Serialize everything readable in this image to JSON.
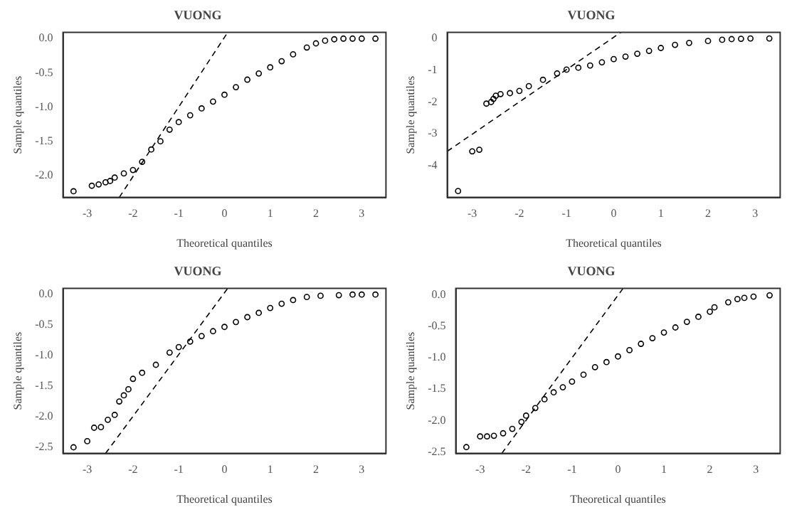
{
  "chart_data": [
    {
      "type": "scatter",
      "title": "VUONG",
      "xlabel": "Theoretical quantiles",
      "ylabel": "Sample quantiles",
      "xlim": [
        -3.53,
        3.53
      ],
      "ylim": [
        -2.32,
        0.09
      ],
      "xticks": [
        -3,
        -2,
        -1,
        0,
        1,
        2,
        3
      ],
      "yticks": [
        {
          "value": 0,
          "label": "0.0"
        },
        {
          "value": -0.5,
          "label": "-0.5"
        },
        {
          "value": -1,
          "label": "-1.0"
        },
        {
          "value": -1.5,
          "label": "-1.5"
        },
        {
          "value": -2,
          "label": "-2.0"
        }
      ],
      "grid": false,
      "legend": false,
      "series": [
        {
          "color": "#000000",
          "marker": "circle",
          "x": [
            -3.3,
            -2.9,
            -2.75,
            -2.6,
            -2.5,
            -2.4,
            -2.2,
            -2.0,
            -1.8,
            -1.6,
            -1.4,
            -1.2,
            -1.0,
            -0.75,
            -0.5,
            -0.25,
            0,
            0.25,
            0.5,
            0.75,
            1.0,
            1.25,
            1.5,
            1.8,
            2.0,
            2.2,
            2.4,
            2.6,
            2.8,
            3.0,
            3.3
          ],
          "values": [
            -2.23,
            -2.15,
            -2.13,
            -2.1,
            -2.08,
            -2.03,
            -1.97,
            -1.92,
            -1.8,
            -1.62,
            -1.5,
            -1.33,
            -1.22,
            -1.12,
            -1.02,
            -0.92,
            -0.82,
            -0.71,
            -0.6,
            -0.51,
            -0.42,
            -0.33,
            -0.23,
            -0.13,
            -0.07,
            -0.03,
            -0.01,
            0,
            0,
            0,
            0
          ]
        },
        {
          "type": "line",
          "line_style": "dashed",
          "color": "#000000",
          "x": [
            -2.3,
            0.07
          ],
          "values": [
            -2.32,
            0.09
          ]
        }
      ]
    },
    {
      "type": "scatter",
      "title": "VUONG",
      "xlabel": "Theoretical quantiles",
      "ylabel": "Sample quantiles",
      "xlim": [
        -3.53,
        3.53
      ],
      "ylim": [
        -5.0,
        0.19
      ],
      "xticks": [
        -3,
        -2,
        -1,
        0,
        1,
        2,
        3
      ],
      "yticks": [
        0,
        -1,
        -2,
        -3,
        -4
      ],
      "grid": false,
      "legend": false,
      "series": [
        {
          "color": "#000000",
          "marker": "circle",
          "x": [
            -3.3,
            -3.0,
            -2.85,
            -2.7,
            -2.6,
            -2.55,
            -2.5,
            -2.4,
            -2.2,
            -2.0,
            -1.8,
            -1.5,
            -1.2,
            -1.0,
            -0.75,
            -0.5,
            -0.25,
            0,
            0.25,
            0.5,
            0.75,
            1.0,
            1.3,
            1.6,
            2.0,
            2.3,
            2.5,
            2.7,
            2.9,
            3.3
          ],
          "values": [
            -4.8,
            -3.55,
            -3.5,
            -2.05,
            -2.0,
            -1.9,
            -1.8,
            -1.75,
            -1.72,
            -1.65,
            -1.5,
            -1.3,
            -1.1,
            -0.98,
            -0.92,
            -0.85,
            -0.75,
            -0.65,
            -0.57,
            -0.48,
            -0.39,
            -0.3,
            -0.2,
            -0.14,
            -0.08,
            -0.04,
            -0.02,
            -0.01,
            0,
            0
          ]
        },
        {
          "type": "line",
          "line_style": "dashed",
          "color": "#000000",
          "x": [
            -3.53,
            0.15
          ],
          "values": [
            -3.55,
            0.19
          ]
        }
      ]
    },
    {
      "type": "scatter",
      "title": "VUONG",
      "xlabel": "Theoretical quantiles",
      "ylabel": "Sample quantiles",
      "xlim": [
        -3.53,
        3.53
      ],
      "ylim": [
        -2.6,
        0.1
      ],
      "xticks": [
        -3,
        -2,
        -1,
        0,
        1,
        2,
        3
      ],
      "yticks": [
        {
          "value": 0,
          "label": "0.0"
        },
        {
          "value": -0.5,
          "label": "-0.5"
        },
        {
          "value": -1,
          "label": "-1.0"
        },
        {
          "value": -1.5,
          "label": "-1.5"
        },
        {
          "value": -2,
          "label": "-2.0"
        },
        {
          "value": -2.5,
          "label": "-2.5"
        }
      ],
      "grid": false,
      "legend": false,
      "series": [
        {
          "color": "#000000",
          "marker": "circle",
          "x": [
            -3.3,
            -3.0,
            -2.85,
            -2.7,
            -2.55,
            -2.4,
            -2.3,
            -2.2,
            -2.1,
            -2.0,
            -1.8,
            -1.5,
            -1.2,
            -1.0,
            -0.75,
            -0.5,
            -0.25,
            0,
            0.25,
            0.5,
            0.75,
            1.0,
            1.25,
            1.5,
            1.8,
            2.1,
            2.5,
            2.8,
            3.0,
            3.3
          ],
          "values": [
            -2.5,
            -2.4,
            -2.18,
            -2.17,
            -2.05,
            -1.97,
            -1.75,
            -1.65,
            -1.55,
            -1.38,
            -1.28,
            -1.15,
            -0.95,
            -0.86,
            -0.77,
            -0.68,
            -0.6,
            -0.53,
            -0.45,
            -0.37,
            -0.3,
            -0.22,
            -0.15,
            -0.09,
            -0.04,
            -0.02,
            -0.01,
            0,
            0,
            0
          ]
        },
        {
          "type": "line",
          "line_style": "dashed",
          "color": "#000000",
          "x": [
            -2.6,
            0.07
          ],
          "values": [
            -2.6,
            0.1
          ]
        }
      ]
    },
    {
      "type": "scatter",
      "title": "VUONG",
      "xlabel": "Theoretical quantiles",
      "ylabel": "Sample quantiles",
      "xlim": [
        -3.53,
        3.53
      ],
      "ylim": [
        -2.52,
        0.1
      ],
      "xticks": [
        -3,
        -2,
        -1,
        0,
        1,
        2,
        3
      ],
      "yticks": [
        {
          "value": 0,
          "label": "0.0"
        },
        {
          "value": -0.5,
          "label": "-0.5"
        },
        {
          "value": -1,
          "label": "-1.0"
        },
        {
          "value": -1.5,
          "label": "-1.5"
        },
        {
          "value": -2,
          "label": "-2.0"
        },
        {
          "value": -2.5,
          "label": "-2.5"
        }
      ],
      "grid": false,
      "legend": false,
      "series": [
        {
          "color": "#000000",
          "marker": "circle",
          "x": [
            -3.3,
            -3.0,
            -2.85,
            -2.7,
            -2.5,
            -2.3,
            -2.1,
            -2.0,
            -1.8,
            -1.6,
            -1.4,
            -1.2,
            -1.0,
            -0.75,
            -0.5,
            -0.25,
            0,
            0.25,
            0.5,
            0.75,
            1.0,
            1.25,
            1.5,
            1.75,
            2.0,
            2.1,
            2.4,
            2.6,
            2.75,
            2.95,
            3.3
          ],
          "values": [
            -2.42,
            -2.25,
            -2.25,
            -2.24,
            -2.2,
            -2.13,
            -2.02,
            -1.92,
            -1.8,
            -1.66,
            -1.55,
            -1.47,
            -1.38,
            -1.27,
            -1.15,
            -1.07,
            -0.98,
            -0.88,
            -0.78,
            -0.69,
            -0.6,
            -0.52,
            -0.43,
            -0.35,
            -0.27,
            -0.2,
            -0.12,
            -0.07,
            -0.05,
            -0.03,
            -0.01
          ]
        },
        {
          "type": "line",
          "line_style": "dashed",
          "color": "#000000",
          "x": [
            -2.53,
            0.11
          ],
          "values": [
            -2.52,
            0.1
          ]
        }
      ]
    }
  ]
}
